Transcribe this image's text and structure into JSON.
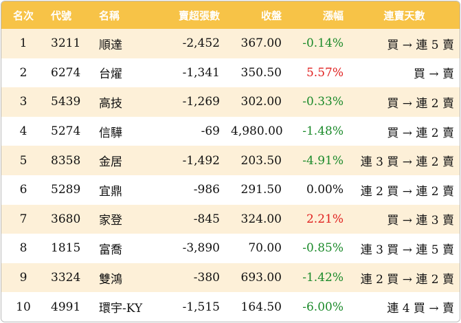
{
  "headers": {
    "rank": "名次",
    "code": "代號",
    "name": "名稱",
    "net_sell": "賣超張數",
    "close": "收盤",
    "change": "漲幅",
    "streak": "連賣天數"
  },
  "colors": {
    "header_bg": "#f7c347",
    "stripe": "#fdf0d8",
    "up": "#e0201f",
    "down": "#1b8a2a"
  },
  "rows": [
    {
      "rank": "1",
      "code": "3211",
      "name": "順達",
      "net_sell": "-2,452",
      "close": "367.00",
      "change": "-0.14%",
      "dir": "down",
      "streak": "買 → 連 5 賣"
    },
    {
      "rank": "2",
      "code": "6274",
      "name": "台燿",
      "net_sell": "-1,341",
      "close": "350.50",
      "change": "5.57%",
      "dir": "up",
      "streak": "買 → 賣"
    },
    {
      "rank": "3",
      "code": "5439",
      "name": "高技",
      "net_sell": "-1,269",
      "close": "302.00",
      "change": "-0.33%",
      "dir": "down",
      "streak": "買 → 連 2 賣"
    },
    {
      "rank": "4",
      "code": "5274",
      "name": "信驊",
      "net_sell": "-69",
      "close": "4,980.00",
      "change": "-1.48%",
      "dir": "down",
      "streak": "買 → 連 2 賣"
    },
    {
      "rank": "5",
      "code": "8358",
      "name": "金居",
      "net_sell": "-1,492",
      "close": "203.50",
      "change": "-4.91%",
      "dir": "down",
      "streak": "連 3 買 → 連 2 賣"
    },
    {
      "rank": "6",
      "code": "5289",
      "name": "宜鼎",
      "net_sell": "-986",
      "close": "291.50",
      "change": "0.00%",
      "dir": "flat",
      "streak": "連 2 買 → 連 2 賣"
    },
    {
      "rank": "7",
      "code": "3680",
      "name": "家登",
      "net_sell": "-845",
      "close": "324.00",
      "change": "2.21%",
      "dir": "up",
      "streak": "買 → 連 3 賣"
    },
    {
      "rank": "8",
      "code": "1815",
      "name": "富喬",
      "net_sell": "-3,890",
      "close": "70.00",
      "change": "-0.85%",
      "dir": "down",
      "streak": "連 3 買 → 連 5 賣"
    },
    {
      "rank": "9",
      "code": "3324",
      "name": "雙鴻",
      "net_sell": "-380",
      "close": "693.00",
      "change": "-1.42%",
      "dir": "down",
      "streak": "連 2 買 → 連 2 賣"
    },
    {
      "rank": "10",
      "code": "4991",
      "name": "環宇-KY",
      "net_sell": "-1,515",
      "close": "164.50",
      "change": "-6.00%",
      "dir": "down",
      "streak": "連 4 買 → 賣"
    }
  ]
}
